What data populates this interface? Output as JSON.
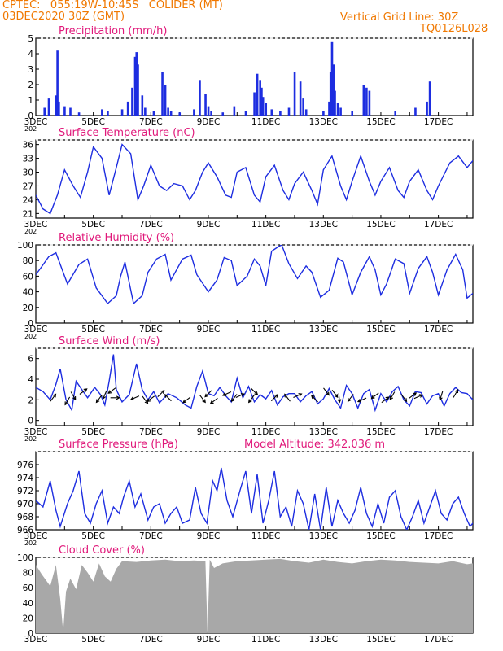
{
  "header": {
    "station_line": "CPTEC:   055:19W-10:45S   COLIDER (MT)",
    "date_line": "03DEC2020 30Z (GMT)",
    "grid_line": "Vertical Grid Line: 30Z",
    "run_code": "TQ0126L028"
  },
  "colors": {
    "header": "#f07800",
    "panel_title": "#e0187a",
    "line": "#1d2de0",
    "bar": "#1d2de0",
    "cloud": "#a8a8a8",
    "arrow": "#000000"
  },
  "x_axis": {
    "tick_labels": [
      "3DEC",
      "5DEC",
      "7DEC",
      "9DEC",
      "11DEC",
      "13DEC",
      "15DEC",
      "17DEC"
    ],
    "tick_days": [
      3,
      5,
      7,
      9,
      11,
      13,
      15,
      17
    ],
    "range_days": [
      3,
      18.2
    ],
    "stub_label": "202"
  },
  "chart_data": [
    {
      "id": "precip",
      "type": "bar",
      "title": "Precipitation (mm/h)",
      "ylim": [
        0,
        5
      ],
      "yticks": [
        0,
        1,
        2,
        3,
        4,
        5
      ],
      "x": [
        3.3,
        3.45,
        3.7,
        3.75,
        3.8,
        4.0,
        4.2,
        4.5,
        5.3,
        5.5,
        6.0,
        6.2,
        6.35,
        6.45,
        6.5,
        6.55,
        6.7,
        6.8,
        7.1,
        7.4,
        7.5,
        7.6,
        7.7,
        8.0,
        8.5,
        8.7,
        8.9,
        9.0,
        9.1,
        9.5,
        9.9,
        10.3,
        10.6,
        10.7,
        10.8,
        10.85,
        10.9,
        11.0,
        11.2,
        11.5,
        11.8,
        12.0,
        12.2,
        12.3,
        12.4,
        13.0,
        13.2,
        13.25,
        13.3,
        13.35,
        13.4,
        13.5,
        13.6,
        14.0,
        14.4,
        14.5,
        14.6,
        15.5,
        16.2,
        16.6,
        16.7
      ],
      "values": [
        0.5,
        1.1,
        1.3,
        4.2,
        0.9,
        0.6,
        0.5,
        0.2,
        0.4,
        0.3,
        0.4,
        0.9,
        1.8,
        3.8,
        4.1,
        3.3,
        1.3,
        0.5,
        0.3,
        2.8,
        2.0,
        0.5,
        0.3,
        0.2,
        0.4,
        2.3,
        1.4,
        0.6,
        0.3,
        0.2,
        0.6,
        0.3,
        1.5,
        2.7,
        2.3,
        1.8,
        1.2,
        0.8,
        0.4,
        0.3,
        0.5,
        2.8,
        2.2,
        1.1,
        0.4,
        0.3,
        0.9,
        2.8,
        4.8,
        3.3,
        1.6,
        0.8,
        0.5,
        0.3,
        2.0,
        1.8,
        1.6,
        0.3,
        0.5,
        0.9,
        2.2
      ]
    },
    {
      "id": "temp",
      "type": "line",
      "title": "Surface Temperature (nC)",
      "ylim": [
        20,
        37
      ],
      "yticks": [
        21,
        24,
        27,
        30,
        33,
        36
      ],
      "x": [
        3.0,
        3.25,
        3.5,
        3.75,
        4.0,
        4.3,
        4.55,
        4.8,
        5.0,
        5.3,
        5.55,
        5.8,
        6.0,
        6.3,
        6.55,
        6.75,
        7.0,
        7.3,
        7.55,
        7.8,
        8.1,
        8.35,
        8.55,
        8.8,
        9.0,
        9.3,
        9.6,
        9.8,
        10.0,
        10.3,
        10.6,
        10.8,
        11.0,
        11.3,
        11.6,
        11.8,
        12.0,
        12.3,
        12.6,
        12.8,
        13.0,
        13.3,
        13.6,
        13.8,
        14.0,
        14.3,
        14.6,
        14.8,
        15.0,
        15.3,
        15.6,
        15.8,
        16.0,
        16.3,
        16.6,
        16.8,
        17.0,
        17.4,
        17.7,
        18.0,
        18.2
      ],
      "values": [
        25,
        22,
        21,
        25,
        30.5,
        27,
        24.5,
        30,
        35.5,
        33,
        25,
        31,
        36,
        34,
        24,
        27,
        31.5,
        27,
        26,
        27.5,
        27,
        24,
        26,
        30,
        32,
        29,
        25,
        24.5,
        30,
        31,
        25,
        23.5,
        29,
        31.5,
        26,
        24,
        27.5,
        30,
        26,
        23,
        30.5,
        33.5,
        27,
        24,
        28,
        33.5,
        28,
        25,
        28,
        31,
        26,
        24.5,
        28,
        30.5,
        26,
        24,
        27,
        32,
        33.5,
        31,
        32.5
      ]
    },
    {
      "id": "rh",
      "type": "line",
      "title": "Relative Humidity (%)",
      "ylim": [
        0,
        100
      ],
      "yticks": [
        0,
        20,
        40,
        60,
        80,
        100
      ],
      "x": [
        3.0,
        3.2,
        3.45,
        3.7,
        3.9,
        4.1,
        4.5,
        4.8,
        5.1,
        5.5,
        5.8,
        5.95,
        6.1,
        6.4,
        6.7,
        6.9,
        7.2,
        7.5,
        7.7,
        8.1,
        8.4,
        8.6,
        9.0,
        9.3,
        9.55,
        9.8,
        10.0,
        10.35,
        10.6,
        10.8,
        11.0,
        11.2,
        11.45,
        11.55,
        11.8,
        12.1,
        12.4,
        12.6,
        12.9,
        13.2,
        13.5,
        13.7,
        14.0,
        14.3,
        14.6,
        14.8,
        15.0,
        15.2,
        15.5,
        15.8,
        16.0,
        16.3,
        16.6,
        16.8,
        17.0,
        17.3,
        17.6,
        17.85,
        18.0,
        18.2
      ],
      "values": [
        62,
        72,
        85,
        90,
        70,
        50,
        75,
        82,
        45,
        25,
        35,
        60,
        78,
        25,
        35,
        65,
        82,
        88,
        55,
        82,
        87,
        62,
        40,
        55,
        84,
        80,
        48,
        60,
        82,
        73,
        48,
        92,
        98,
        100,
        76,
        57,
        73,
        65,
        33,
        42,
        83,
        78,
        36,
        65,
        85,
        68,
        36,
        50,
        82,
        76,
        38,
        70,
        85,
        65,
        36,
        68,
        88,
        68,
        32,
        38
      ]
    },
    {
      "id": "wind",
      "type": "line",
      "title": "Surface Wind (m/s)",
      "ylim": [
        -0.5,
        7
      ],
      "yticks": [
        0,
        2,
        4,
        6
      ],
      "x": [
        3.0,
        3.25,
        3.5,
        3.7,
        3.85,
        4.05,
        4.25,
        4.4,
        4.6,
        4.8,
        5.05,
        5.25,
        5.4,
        5.55,
        5.7,
        5.8,
        6.0,
        6.25,
        6.5,
        6.7,
        6.9,
        7.1,
        7.3,
        7.6,
        7.9,
        8.2,
        8.4,
        8.6,
        8.8,
        9.0,
        9.2,
        9.4,
        9.6,
        9.8,
        10.0,
        10.2,
        10.4,
        10.6,
        10.8,
        11.0,
        11.2,
        11.4,
        11.6,
        11.8,
        12.0,
        12.2,
        12.4,
        12.6,
        12.8,
        13.0,
        13.2,
        13.4,
        13.6,
        13.8,
        14.0,
        14.2,
        14.4,
        14.6,
        14.8,
        15.0,
        15.2,
        15.4,
        15.6,
        15.8,
        16.0,
        16.2,
        16.4,
        16.6,
        16.8,
        17.0,
        17.2,
        17.4,
        17.6,
        17.8,
        18.0,
        18.2
      ],
      "values": [
        3.2,
        2.8,
        2.0,
        3.5,
        5.0,
        2.0,
        1.0,
        3.8,
        3.0,
        2.2,
        3.2,
        2.5,
        1.5,
        3.8,
        6.4,
        3.0,
        1.8,
        2.5,
        5.5,
        3.0,
        2.0,
        2.8,
        1.7,
        2.6,
        2.2,
        1.5,
        1.2,
        3.3,
        4.8,
        2.6,
        2.4,
        3.2,
        2.4,
        1.8,
        4.1,
        2.2,
        3.3,
        1.8,
        2.5,
        2.1,
        2.9,
        1.5,
        2.3,
        2.6,
        2.6,
        1.8,
        2.4,
        2.8,
        1.6,
        2.1,
        3.1,
        2.0,
        1.2,
        3.4,
        2.6,
        1.2,
        2.6,
        3.0,
        1.0,
        2.6,
        1.8,
        2.8,
        3.3,
        2.0,
        1.4,
        2.8,
        2.7,
        1.6,
        2.4,
        2.6,
        1.4,
        2.6,
        3.2,
        2.7,
        2.6,
        2.0
      ]
    },
    {
      "id": "pressure",
      "type": "line",
      "title": "Surface Pressure (hPa)",
      "model_altitude": "Model Altitude: 342.036 m",
      "ylim": [
        966,
        978
      ],
      "yticks": [
        966,
        968,
        970,
        972,
        974,
        976
      ],
      "x": [
        3.0,
        3.25,
        3.5,
        3.7,
        3.85,
        4.1,
        4.3,
        4.5,
        4.7,
        4.9,
        5.1,
        5.3,
        5.5,
        5.7,
        5.9,
        6.05,
        6.25,
        6.45,
        6.65,
        6.9,
        7.1,
        7.3,
        7.5,
        7.7,
        7.9,
        8.1,
        8.35,
        8.55,
        8.75,
        8.95,
        9.15,
        9.3,
        9.45,
        9.65,
        9.85,
        10.1,
        10.3,
        10.5,
        10.7,
        10.9,
        11.1,
        11.3,
        11.5,
        11.7,
        11.9,
        12.1,
        12.3,
        12.5,
        12.7,
        12.9,
        13.1,
        13.3,
        13.5,
        13.7,
        13.9,
        14.1,
        14.3,
        14.5,
        14.7,
        14.9,
        15.1,
        15.3,
        15.5,
        15.7,
        15.9,
        16.1,
        16.3,
        16.5,
        16.7,
        16.9,
        17.1,
        17.3,
        17.5,
        17.7,
        17.9,
        18.1,
        18.2
      ],
      "values": [
        970.5,
        969.5,
        973.5,
        969,
        966.5,
        970,
        972,
        975,
        968.5,
        967,
        970,
        972,
        967,
        969.5,
        968.5,
        971,
        973.5,
        969.5,
        971.5,
        967.5,
        969.5,
        970,
        967,
        968.5,
        969.5,
        967,
        967.5,
        972.5,
        968.5,
        967,
        973.5,
        972,
        975.5,
        970.5,
        968,
        972,
        975,
        968.5,
        974.5,
        967,
        970.5,
        975,
        968,
        969.5,
        966.5,
        972,
        970,
        966,
        971.5,
        966,
        972.5,
        966.5,
        970.5,
        968.5,
        967,
        969,
        972.5,
        968.5,
        966.5,
        970,
        967,
        971,
        972,
        968,
        966,
        968,
        970.5,
        967,
        969.5,
        972,
        968.5,
        967.5,
        970,
        971,
        968.5,
        966.5,
        967
      ]
    },
    {
      "id": "cloud",
      "type": "area",
      "title": "Cloud Cover (%)",
      "ylim": [
        0,
        100
      ],
      "yticks": [
        0,
        20,
        40,
        60,
        80,
        100
      ],
      "x": [
        3.0,
        3.2,
        3.5,
        3.7,
        3.85,
        3.95,
        4.05,
        4.2,
        4.4,
        4.6,
        4.8,
        5.0,
        5.2,
        5.4,
        5.6,
        5.8,
        6.0,
        6.5,
        7.0,
        7.5,
        8.0,
        8.5,
        8.9,
        8.97,
        9.05,
        9.2,
        9.5,
        10.0,
        10.5,
        11.0,
        11.5,
        12.0,
        12.5,
        13.0,
        13.5,
        14.0,
        14.5,
        15.0,
        15.5,
        16.0,
        16.5,
        17.0,
        17.5,
        18.0,
        18.2
      ],
      "values": [
        90,
        78,
        62,
        90,
        45,
        2,
        55,
        72,
        58,
        90,
        80,
        68,
        92,
        75,
        68,
        85,
        95,
        94,
        96,
        97,
        95,
        96,
        95,
        0,
        97,
        86,
        92,
        95,
        96,
        97,
        98,
        95,
        93,
        97,
        94,
        92,
        95,
        97,
        96,
        94,
        93,
        92,
        95,
        91,
        92
      ]
    }
  ],
  "wind_arrows": {
    "x": [
      3.6,
      4.1,
      4.3,
      4.65,
      5.2,
      5.4,
      5.65,
      5.75,
      6.45,
      6.8,
      7.0,
      7.35,
      7.6,
      8.25,
      8.8,
      9.0,
      9.2,
      9.65,
      9.9,
      10.1,
      10.5,
      10.6,
      11.3,
      11.75,
      12.1,
      12.7,
      13.1,
      13.4,
      13.55,
      13.95,
      14.35,
      14.8,
      15.15,
      15.4,
      15.8,
      16.1,
      16.3,
      17.1,
      17.6
    ],
    "speed": [
      2.2,
      1.9,
      2.4,
      2.8,
      2.1,
      2.5,
      2.9,
      2.2,
      2.2,
      2.0,
      2.1,
      2.6,
      2.2,
      2.0,
      2.1,
      2.6,
      1.9,
      2.6,
      2.2,
      2.4,
      2.1,
      2.8,
      2.2,
      2.2,
      2.4,
      2.1,
      2.8,
      2.6,
      2.2,
      2.2,
      2.0,
      2.4,
      2.0,
      2.4,
      2.2,
      2.4,
      2.3,
      2.4,
      2.6
    ],
    "u": [
      0.6,
      -0.5,
      0.5,
      0.8,
      -0.6,
      -0.4,
      -0.8,
      1.0,
      -0.9,
      0.6,
      -0.8,
      0.7,
      -0.7,
      -0.8,
      0.6,
      -0.7,
      -0.8,
      -0.9,
      -0.6,
      0.9,
      -0.6,
      0.7,
      0.7,
      -0.6,
      0.9,
      -0.7,
      0.6,
      0.6,
      0.1,
      -0.6,
      -0.9,
      -0.8,
      0.8,
      -0.5,
      0.6,
      0.8,
      0.9,
      -0.3,
      0.5
    ],
    "v": [
      0.8,
      -0.85,
      -0.85,
      0.6,
      -0.8,
      -0.9,
      -0.6,
      0.0,
      -0.4,
      -0.8,
      -0.6,
      0.7,
      0.7,
      -0.6,
      -0.8,
      -0.7,
      -0.6,
      -0.4,
      -0.8,
      0.4,
      -0.8,
      -0.7,
      0.7,
      0.8,
      0.4,
      0.7,
      -0.8,
      -0.8,
      -1.0,
      -0.8,
      -0.4,
      -0.6,
      0.6,
      -0.87,
      -0.8,
      0.6,
      0.4,
      -0.95,
      0.87
    ]
  }
}
